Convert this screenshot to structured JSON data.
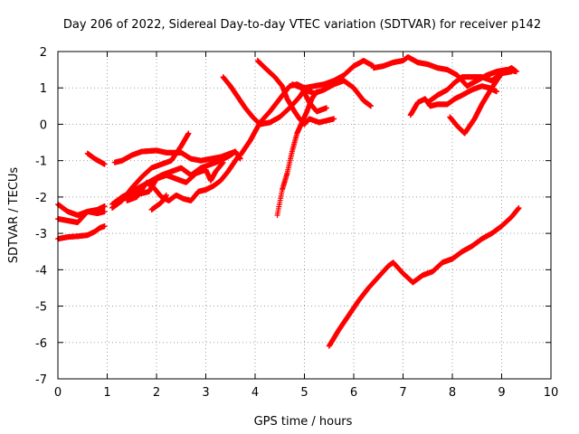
{
  "chart_data": {
    "type": "scatter",
    "title": "Day 206 of 2022, Sidereal Day-to-day VTEC variation (SDTVAR) for receiver p142",
    "xlabel": "GPS time / hours",
    "ylabel": "SDTVAR / TECUs",
    "xlim": [
      0,
      10
    ],
    "ylim": [
      -7,
      2
    ],
    "xticks": [
      "0",
      "1",
      "2",
      "3",
      "4",
      "5",
      "6",
      "7",
      "8",
      "9",
      "10"
    ],
    "yticks": [
      "-7",
      "-6",
      "-5",
      "-4",
      "-3",
      "-2",
      "-1",
      "0",
      "1",
      "2"
    ],
    "grid": true,
    "marker": "plus",
    "color": "#ff0000",
    "series": [
      {
        "points": [
          [
            0.0,
            -2.2
          ],
          [
            0.2,
            -2.4
          ],
          [
            0.4,
            -2.5
          ],
          [
            0.6,
            -2.4
          ],
          [
            0.8,
            -2.35
          ],
          [
            0.95,
            -2.25
          ]
        ]
      },
      {
        "points": [
          [
            0.0,
            -2.6
          ],
          [
            0.2,
            -2.65
          ],
          [
            0.4,
            -2.7
          ],
          [
            0.5,
            -2.55
          ],
          [
            0.6,
            -2.4
          ],
          [
            0.8,
            -2.45
          ],
          [
            0.95,
            -2.4
          ]
        ]
      },
      {
        "points": [
          [
            0.0,
            -3.15
          ],
          [
            0.2,
            -3.1
          ],
          [
            0.4,
            -3.08
          ],
          [
            0.6,
            -3.05
          ],
          [
            0.75,
            -2.95
          ],
          [
            0.85,
            -2.85
          ],
          [
            0.95,
            -2.8
          ]
        ]
      },
      {
        "points": [
          [
            0.6,
            -0.8
          ],
          [
            0.75,
            -0.95
          ],
          [
            0.95,
            -1.1
          ]
        ]
      },
      {
        "points": [
          [
            1.15,
            -1.05
          ],
          [
            1.3,
            -1.0
          ],
          [
            1.5,
            -0.85
          ],
          [
            1.7,
            -0.75
          ],
          [
            2.0,
            -0.72
          ],
          [
            2.2,
            -0.78
          ],
          [
            2.5,
            -0.78
          ],
          [
            2.7,
            -0.95
          ],
          [
            2.9,
            -1.0
          ],
          [
            3.1,
            -0.95
          ],
          [
            3.3,
            -0.9
          ],
          [
            3.5,
            -0.8
          ],
          [
            3.6,
            -0.75
          ],
          [
            3.7,
            -0.95
          ]
        ]
      },
      {
        "points": [
          [
            1.1,
            -2.3
          ],
          [
            1.3,
            -2.1
          ],
          [
            1.5,
            -1.75
          ],
          [
            1.7,
            -1.45
          ],
          [
            1.9,
            -1.2
          ],
          [
            2.1,
            -1.1
          ],
          [
            2.3,
            -1.0
          ],
          [
            2.5,
            -0.6
          ],
          [
            2.65,
            -0.25
          ]
        ]
      },
      {
        "points": [
          [
            1.1,
            -2.2
          ],
          [
            1.3,
            -2.0
          ],
          [
            1.5,
            -1.85
          ],
          [
            1.7,
            -1.7
          ],
          [
            1.9,
            -1.55
          ],
          [
            2.1,
            -1.4
          ],
          [
            2.3,
            -1.3
          ],
          [
            2.5,
            -1.2
          ],
          [
            2.7,
            -1.4
          ],
          [
            2.9,
            -1.2
          ],
          [
            3.1,
            -1.1
          ],
          [
            3.3,
            -1.0
          ],
          [
            3.5,
            -0.85
          ],
          [
            3.6,
            -0.75
          ]
        ]
      },
      {
        "points": [
          [
            1.3,
            -2.05
          ],
          [
            1.5,
            -1.9
          ],
          [
            1.7,
            -1.9
          ],
          [
            1.85,
            -1.85
          ],
          [
            2.0,
            -1.5
          ],
          [
            2.2,
            -1.4
          ],
          [
            2.4,
            -1.5
          ],
          [
            2.6,
            -1.6
          ],
          [
            2.8,
            -1.35
          ],
          [
            3.0,
            -1.25
          ],
          [
            3.1,
            -1.55
          ],
          [
            3.2,
            -1.3
          ],
          [
            3.35,
            -1.05
          ]
        ]
      },
      {
        "points": [
          [
            1.4,
            -2.1
          ],
          [
            1.6,
            -2.0
          ],
          [
            1.8,
            -1.6
          ],
          [
            1.95,
            -1.75
          ],
          [
            2.1,
            -2.0
          ],
          [
            2.25,
            -2.1
          ],
          [
            2.4,
            -1.95
          ],
          [
            2.55,
            -2.05
          ],
          [
            2.7,
            -2.1
          ],
          [
            2.85,
            -1.85
          ],
          [
            3.0,
            -1.8
          ],
          [
            3.15,
            -1.7
          ],
          [
            3.3,
            -1.55
          ],
          [
            3.45,
            -1.3
          ],
          [
            3.65,
            -0.9
          ]
        ]
      },
      {
        "points": [
          [
            1.9,
            -2.35
          ],
          [
            2.0,
            -2.25
          ],
          [
            2.1,
            -2.15
          ],
          [
            2.2,
            -1.95
          ]
        ]
      },
      {
        "points": [
          [
            3.35,
            1.3
          ],
          [
            3.5,
            1.05
          ],
          [
            3.65,
            0.75
          ],
          [
            3.8,
            0.45
          ],
          [
            3.95,
            0.2
          ],
          [
            4.1,
            -0.0
          ],
          [
            4.3,
            0.05
          ],
          [
            4.5,
            0.2
          ],
          [
            4.7,
            0.45
          ],
          [
            4.9,
            0.75
          ],
          [
            5.0,
            0.95
          ],
          [
            5.2,
            0.85
          ],
          [
            5.4,
            0.95
          ],
          [
            5.6,
            1.1
          ],
          [
            5.8,
            1.2
          ],
          [
            6.0,
            1.0
          ],
          [
            6.2,
            0.65
          ],
          [
            6.35,
            0.5
          ]
        ]
      },
      {
        "points": [
          [
            3.7,
            -0.85
          ],
          [
            3.9,
            -0.45
          ],
          [
            4.1,
            0.05
          ],
          [
            4.3,
            0.35
          ],
          [
            4.5,
            0.7
          ],
          [
            4.7,
            1.05
          ],
          [
            4.85,
            1.1
          ],
          [
            5.0,
            1.0
          ],
          [
            5.2,
            1.05
          ],
          [
            5.4,
            1.1
          ],
          [
            5.6,
            1.2
          ],
          [
            5.8,
            1.35
          ],
          [
            6.0,
            1.6
          ],
          [
            6.2,
            1.75
          ],
          [
            6.4,
            1.6
          ]
        ]
      },
      {
        "points": [
          [
            4.05,
            1.75
          ],
          [
            4.2,
            1.55
          ],
          [
            4.4,
            1.3
          ],
          [
            4.55,
            1.05
          ],
          [
            4.65,
            0.7
          ],
          [
            4.8,
            0.35
          ],
          [
            4.9,
            0.15
          ],
          [
            5.0,
            -0.0
          ],
          [
            5.1,
            0.15
          ],
          [
            5.3,
            0.05
          ],
          [
            5.45,
            0.1
          ],
          [
            5.6,
            0.15
          ]
        ]
      },
      {
        "points": [
          [
            4.45,
            -2.5
          ],
          [
            4.55,
            -1.8
          ],
          [
            4.65,
            -1.35
          ],
          [
            4.75,
            -0.75
          ],
          [
            4.85,
            -0.25
          ],
          [
            4.95,
            0.05
          ],
          [
            5.05,
            0.35
          ],
          [
            5.15,
            0.7
          ],
          [
            5.25,
            0.9
          ]
        ]
      },
      {
        "points": [
          [
            4.75,
            1.1
          ],
          [
            4.95,
            1.0
          ],
          [
            5.1,
            0.6
          ],
          [
            5.25,
            0.35
          ],
          [
            5.45,
            0.45
          ]
        ]
      },
      {
        "points": [
          [
            6.4,
            1.55
          ],
          [
            6.6,
            1.6
          ],
          [
            6.8,
            1.7
          ],
          [
            7.0,
            1.75
          ],
          [
            7.1,
            1.85
          ],
          [
            7.3,
            1.7
          ],
          [
            7.5,
            1.65
          ],
          [
            7.7,
            1.55
          ],
          [
            7.9,
            1.5
          ],
          [
            8.1,
            1.35
          ],
          [
            8.3,
            1.05
          ],
          [
            8.5,
            1.2
          ],
          [
            8.7,
            1.35
          ],
          [
            8.9,
            1.45
          ],
          [
            9.1,
            1.5
          ],
          [
            9.3,
            1.45
          ]
        ]
      },
      {
        "points": [
          [
            7.15,
            0.25
          ],
          [
            7.3,
            0.6
          ],
          [
            7.45,
            0.7
          ],
          [
            7.55,
            0.5
          ],
          [
            7.7,
            0.55
          ],
          [
            7.9,
            0.55
          ],
          [
            8.05,
            0.7
          ],
          [
            8.2,
            0.8
          ],
          [
            8.4,
            0.95
          ],
          [
            8.6,
            1.05
          ],
          [
            8.75,
            1.0
          ],
          [
            8.9,
            0.9
          ]
        ]
      },
      {
        "points": [
          [
            7.5,
            0.6
          ],
          [
            7.7,
            0.8
          ],
          [
            7.9,
            0.95
          ],
          [
            8.05,
            1.15
          ],
          [
            8.2,
            1.3
          ],
          [
            8.4,
            1.3
          ],
          [
            8.6,
            1.3
          ],
          [
            8.8,
            1.2
          ],
          [
            9.0,
            1.4
          ],
          [
            9.2,
            1.55
          ],
          [
            9.3,
            1.45
          ]
        ]
      },
      {
        "points": [
          [
            7.95,
            0.2
          ],
          [
            8.1,
            -0.05
          ],
          [
            8.25,
            -0.25
          ],
          [
            8.45,
            0.15
          ],
          [
            8.6,
            0.55
          ],
          [
            8.8,
            1.0
          ],
          [
            9.0,
            1.4
          ],
          [
            9.2,
            1.45
          ]
        ]
      },
      {
        "points": [
          [
            5.5,
            -6.1
          ],
          [
            5.7,
            -5.65
          ],
          [
            5.9,
            -5.25
          ],
          [
            6.1,
            -4.85
          ],
          [
            6.3,
            -4.5
          ],
          [
            6.5,
            -4.2
          ],
          [
            6.7,
            -3.9
          ],
          [
            6.8,
            -3.8
          ],
          [
            7.0,
            -4.1
          ],
          [
            7.2,
            -4.35
          ],
          [
            7.4,
            -4.15
          ],
          [
            7.6,
            -4.05
          ],
          [
            7.8,
            -3.8
          ],
          [
            8.0,
            -3.7
          ],
          [
            8.2,
            -3.5
          ],
          [
            8.4,
            -3.35
          ],
          [
            8.6,
            -3.15
          ],
          [
            8.8,
            -3.0
          ],
          [
            9.0,
            -2.8
          ],
          [
            9.2,
            -2.55
          ],
          [
            9.35,
            -2.3
          ]
        ]
      }
    ]
  }
}
